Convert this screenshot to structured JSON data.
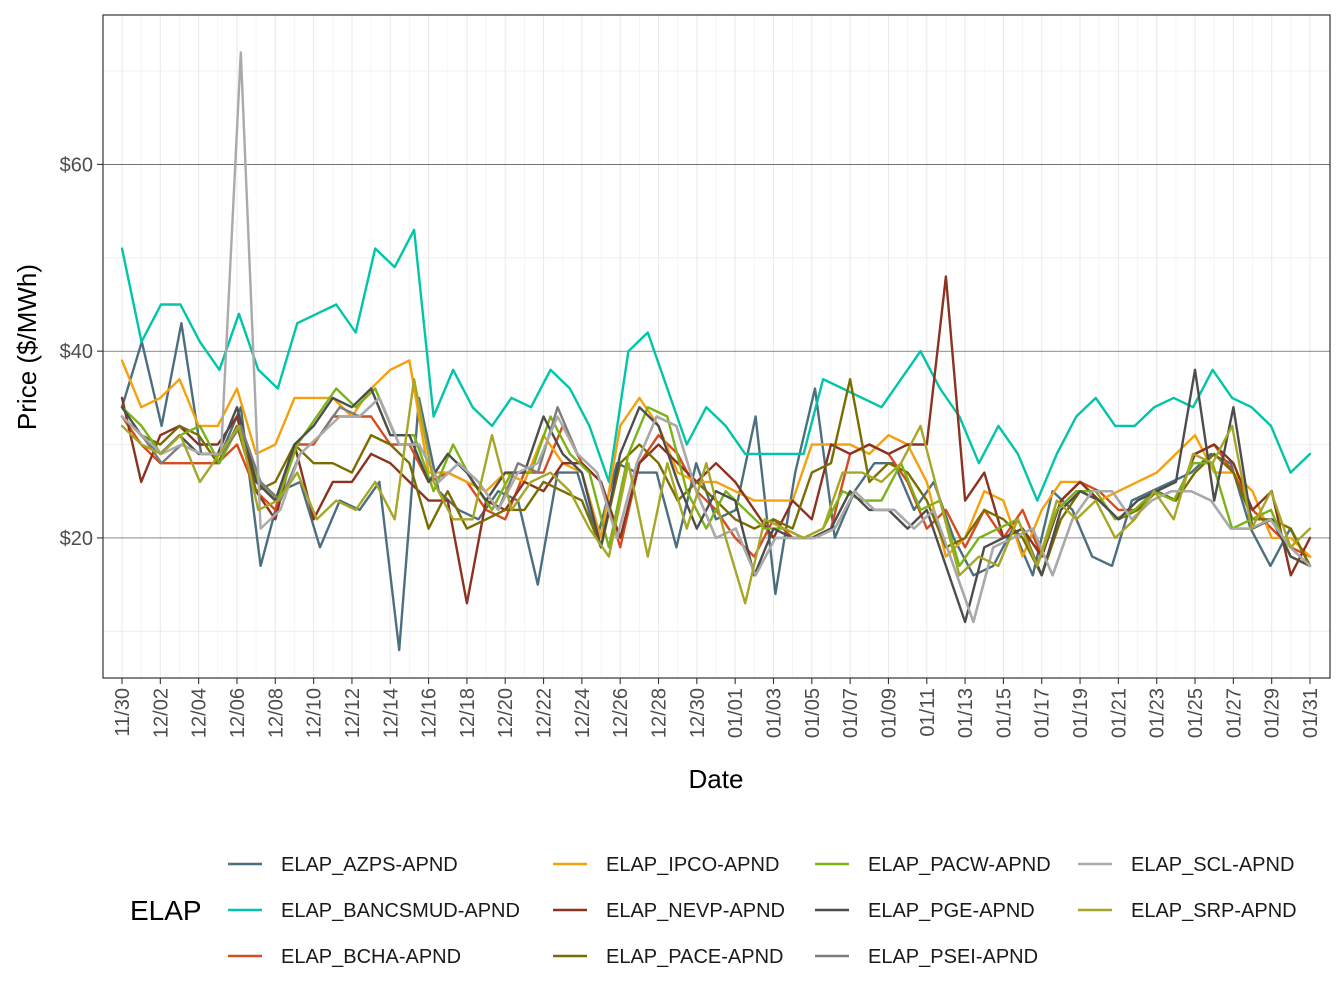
{
  "chart_data": {
    "type": "line",
    "title": "",
    "xlabel": "Date",
    "ylabel": "Price ($/MWh)",
    "x_ticks": [
      "11/30",
      "12/02",
      "12/04",
      "12/06",
      "12/08",
      "12/10",
      "12/12",
      "12/14",
      "12/16",
      "12/18",
      "12/20",
      "12/22",
      "12/24",
      "12/26",
      "12/28",
      "12/30",
      "01/01",
      "01/03",
      "01/05",
      "01/07",
      "01/09",
      "01/11",
      "01/13",
      "01/15",
      "01/17",
      "01/19",
      "01/21",
      "01/23",
      "01/25",
      "01/27",
      "01/29",
      "01/31"
    ],
    "y_ticks": [
      "$20",
      "$40",
      "$60"
    ],
    "y_tick_values": [
      20,
      40,
      60
    ],
    "ylim": [
      5,
      76
    ],
    "x_start_label": "11/30",
    "x_start_date": "2020-11-30",
    "x_end_date": "2021-01-31",
    "grid": true,
    "legend": {
      "title": "ELAP",
      "position": "bottom"
    },
    "series": [
      {
        "name": "ELAP_AZPS-APND",
        "color": "#4c6f80",
        "values": [
          34,
          41,
          32,
          43,
          29,
          29,
          34,
          17,
          25,
          26,
          19,
          24,
          23,
          26,
          8,
          35,
          25,
          23,
          22,
          25,
          24,
          15,
          27,
          27,
          20,
          28,
          27,
          27,
          19,
          28,
          22,
          23,
          33,
          14,
          27,
          36,
          20,
          25,
          28,
          28,
          23,
          26,
          20,
          16,
          17,
          21,
          16,
          25,
          23,
          18,
          17,
          24,
          25,
          26,
          27,
          29,
          28,
          21,
          17,
          21,
          17
        ]
      },
      {
        "name": "ELAP_BANCSMUD-APND",
        "color": "#00c5a8",
        "values": [
          51,
          41,
          45,
          45,
          41,
          38,
          44,
          38,
          36,
          43,
          44,
          45,
          42,
          51,
          49,
          53,
          33,
          38,
          34,
          32,
          35,
          34,
          38,
          36,
          32,
          26,
          40,
          42,
          36,
          30,
          34,
          32,
          29,
          29,
          29,
          29,
          37,
          36,
          35,
          34,
          37,
          40,
          36,
          33,
          28,
          32,
          29,
          24,
          29,
          33,
          35,
          32,
          32,
          34,
          35,
          34,
          38,
          35,
          34,
          32,
          27,
          29
        ]
      },
      {
        "name": "ELAP_BCHA-APND",
        "color": "#d84a20",
        "values": [
          33,
          30,
          28,
          28,
          28,
          28,
          30,
          25,
          23,
          30,
          30,
          33,
          33,
          33,
          30,
          30,
          26,
          27,
          26,
          23,
          22,
          27,
          27,
          32,
          28,
          26,
          19,
          28,
          31,
          29,
          25,
          23,
          20,
          18,
          22,
          20,
          20,
          21,
          29,
          30,
          29,
          26,
          21,
          23,
          19,
          23,
          20,
          23,
          18,
          24,
          26,
          25,
          23,
          23,
          25,
          24,
          29,
          30,
          27,
          23,
          21,
          19,
          18
        ]
      },
      {
        "name": "ELAP_IPCO-APND",
        "color": "#f5a10e",
        "values": [
          39,
          34,
          35,
          37,
          32,
          32,
          36,
          29,
          30,
          35,
          35,
          35,
          33,
          36,
          38,
          39,
          27,
          27,
          26,
          25,
          27,
          26,
          31,
          28,
          27,
          20,
          32,
          35,
          32,
          27,
          26,
          26,
          25,
          24,
          24,
          24,
          30,
          30,
          30,
          29,
          31,
          30,
          26,
          18,
          20,
          25,
          24,
          18,
          23,
          26,
          26,
          24,
          25,
          26,
          27,
          29,
          31,
          27,
          27,
          25,
          20,
          20,
          18
        ]
      },
      {
        "name": "ELAP_NEVP-APND",
        "color": "#8c3220",
        "values": [
          35,
          26,
          31,
          32,
          30,
          30,
          33,
          25,
          22,
          30,
          22,
          26,
          26,
          29,
          28,
          26,
          24,
          24,
          13,
          24,
          23,
          26,
          25,
          28,
          28,
          26,
          20,
          28,
          30,
          28,
          26,
          28,
          26,
          23,
          20,
          24,
          22,
          30,
          29,
          30,
          29,
          30,
          30,
          48,
          24,
          27,
          20,
          21,
          18,
          24,
          26,
          24,
          22,
          23,
          25,
          24,
          29,
          30,
          28,
          23,
          25,
          16,
          20
        ]
      },
      {
        "name": "ELAP_PACE-APND",
        "color": "#7a6d00",
        "values": [
          33,
          31,
          30,
          32,
          31,
          28,
          32,
          25,
          26,
          30,
          28,
          28,
          27,
          31,
          30,
          28,
          21,
          25,
          21,
          22,
          23,
          23,
          26,
          25,
          24,
          19,
          28,
          30,
          28,
          24,
          26,
          24,
          22,
          21,
          22,
          21,
          27,
          28,
          37,
          26,
          28,
          27,
          24,
          19,
          20,
          23,
          22,
          20,
          16,
          22,
          25,
          24,
          22,
          23,
          25,
          24,
          27,
          29,
          27,
          22,
          22,
          21,
          17
        ]
      },
      {
        "name": "ELAP_PACW-APND",
        "color": "#7ab317",
        "values": [
          34,
          32,
          29,
          31,
          32,
          28,
          32,
          26,
          24,
          30,
          33,
          36,
          34,
          36,
          31,
          31,
          25,
          30,
          26,
          23,
          27,
          27,
          33,
          29,
          27,
          19,
          29,
          34,
          33,
          25,
          21,
          25,
          23,
          21,
          21,
          20,
          21,
          25,
          24,
          24,
          28,
          23,
          24,
          17,
          20,
          21,
          22,
          17,
          23,
          25,
          25,
          22,
          23,
          25,
          24,
          28,
          28,
          21,
          22,
          23,
          18,
          17
        ]
      },
      {
        "name": "ELAP_PGE-APND",
        "color": "#4d4d4d",
        "values": [
          34,
          31,
          29,
          31,
          29,
          29,
          34,
          26,
          24,
          30,
          32,
          35,
          34,
          36,
          31,
          31,
          26,
          29,
          27,
          24,
          27,
          27,
          33,
          29,
          27,
          19,
          29,
          34,
          32,
          26,
          21,
          25,
          24,
          16,
          21,
          20,
          20,
          21,
          25,
          23,
          23,
          21,
          23,
          17,
          11,
          19,
          20,
          21,
          16,
          23,
          25,
          24,
          22,
          24,
          25,
          26,
          38,
          24,
          34,
          21,
          22,
          18,
          17
        ]
      },
      {
        "name": "ELAP_PSEI-APND",
        "color": "#7d7d7d",
        "values": [
          33,
          31,
          28,
          30,
          29,
          29,
          32,
          26,
          24,
          29,
          31,
          34,
          33,
          35,
          30,
          30,
          26,
          28,
          26,
          23,
          28,
          27,
          34,
          29,
          27,
          20,
          28,
          33,
          32,
          25,
          20,
          21,
          16,
          20,
          20,
          20,
          21,
          25,
          23,
          23,
          21,
          23,
          17,
          11,
          19,
          20,
          21,
          16,
          22,
          25,
          25,
          22,
          24,
          25,
          25,
          24,
          21,
          21,
          22,
          19,
          17
        ]
      },
      {
        "name": "ELAP_SCL-APND",
        "color": "#aaaaaa",
        "values": [
          33,
          31,
          29,
          30,
          29,
          29,
          72,
          21,
          23,
          29,
          31,
          33,
          33,
          35,
          30,
          30,
          26,
          28,
          26,
          23,
          27,
          28,
          33,
          29,
          27,
          20,
          28,
          33,
          32,
          25,
          20,
          21,
          16,
          20,
          20,
          20,
          21,
          25,
          23,
          23,
          21,
          23,
          17,
          11,
          19,
          20,
          21,
          16,
          22,
          25,
          25,
          22,
          24,
          25,
          25,
          24,
          21,
          21,
          22,
          19,
          17
        ]
      },
      {
        "name": "ELAP_SRP-APND",
        "color": "#a6a628",
        "values": [
          32,
          30,
          29,
          31,
          26,
          29,
          32,
          23,
          24,
          27,
          22,
          24,
          23,
          26,
          22,
          37,
          26,
          22,
          22,
          31,
          23,
          26,
          27,
          25,
          21,
          18,
          28,
          18,
          28,
          21,
          28,
          20,
          13,
          22,
          21,
          20,
          21,
          27,
          27,
          26,
          28,
          32,
          24,
          16,
          18,
          17,
          22,
          17,
          24,
          22,
          24,
          20,
          22,
          25,
          22,
          29,
          28,
          32,
          21,
          25,
          19,
          21
        ]
      }
    ]
  }
}
